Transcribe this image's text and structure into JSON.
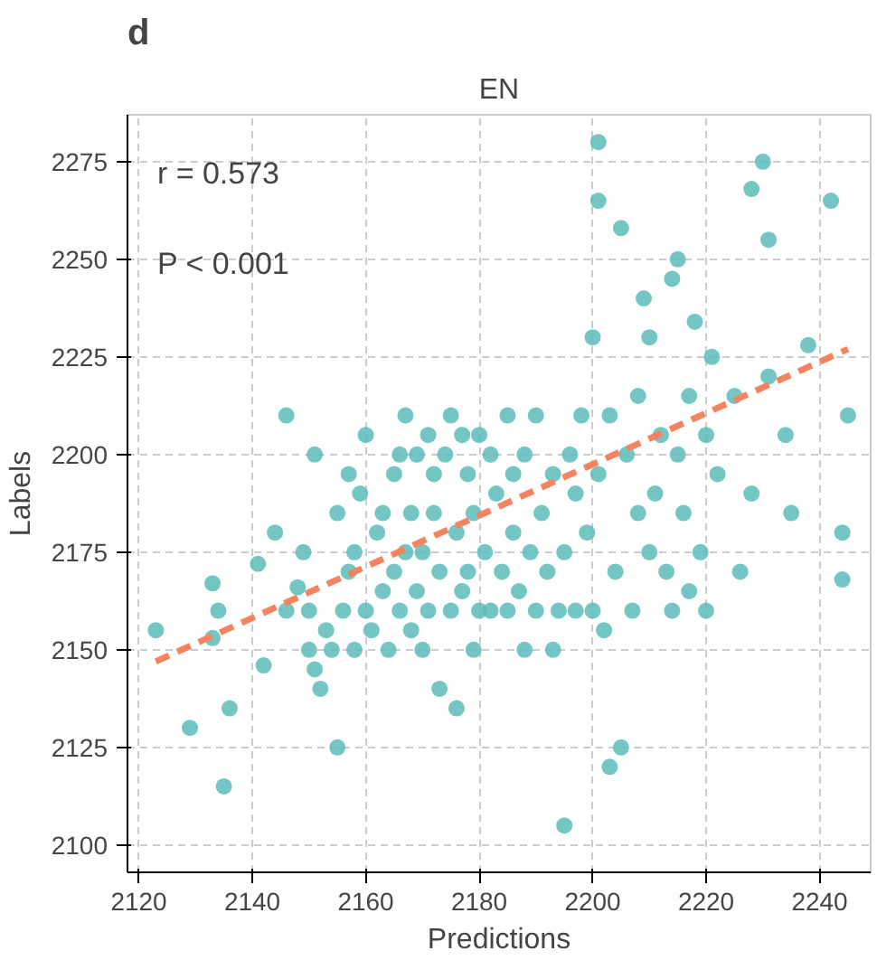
{
  "chart_data": {
    "type": "scatter",
    "title": "EN",
    "xlabel": "Predictions",
    "ylabel": "Labels",
    "xlim": [
      2118,
      2249
    ],
    "ylim": [
      2093,
      2287
    ],
    "xticks": [
      2120,
      2140,
      2160,
      2180,
      2200,
      2220,
      2240
    ],
    "yticks": [
      2100,
      2125,
      2150,
      2175,
      2200,
      2225,
      2250,
      2275
    ],
    "grid": true,
    "annotations": [
      "d",
      "r = 0.573",
      "P < 0.001"
    ],
    "series": [
      {
        "marker": "circle",
        "color": "#5bbcb8",
        "x": [
          2123,
          2129,
          2133,
          2133,
          2134,
          2135,
          2136,
          2141,
          2142,
          2144,
          2146,
          2146,
          2148,
          2149,
          2150,
          2150,
          2151,
          2151,
          2152,
          2153,
          2154,
          2155,
          2155,
          2156,
          2157,
          2157,
          2158,
          2158,
          2159,
          2160,
          2160,
          2161,
          2162,
          2163,
          2163,
          2164,
          2165,
          2165,
          2166,
          2166,
          2167,
          2167,
          2168,
          2168,
          2169,
          2169,
          2170,
          2170,
          2171,
          2171,
          2172,
          2172,
          2173,
          2173,
          2174,
          2175,
          2175,
          2176,
          2176,
          2177,
          2177,
          2178,
          2178,
          2179,
          2179,
          2180,
          2180,
          2181,
          2182,
          2182,
          2183,
          2184,
          2185,
          2185,
          2186,
          2186,
          2187,
          2188,
          2188,
          2189,
          2190,
          2190,
          2191,
          2192,
          2193,
          2193,
          2194,
          2195,
          2195,
          2196,
          2197,
          2197,
          2198,
          2199,
          2200,
          2200,
          2201,
          2201,
          2201,
          2202,
          2203,
          2203,
          2204,
          2205,
          2205,
          2206,
          2207,
          2208,
          2208,
          2209,
          2210,
          2210,
          2211,
          2212,
          2213,
          2214,
          2214,
          2215,
          2215,
          2216,
          2217,
          2217,
          2218,
          2219,
          2220,
          2220,
          2221,
          2222,
          2225,
          2226,
          2228,
          2228,
          2230,
          2231,
          2231,
          2234,
          2235,
          2238,
          2242,
          2244,
          2244,
          2245
        ],
        "values": [
          2155,
          2130,
          2153,
          2167,
          2160,
          2115,
          2135,
          2172,
          2146,
          2180,
          2210,
          2160,
          2166,
          2175,
          2160,
          2150,
          2145,
          2200,
          2140,
          2155,
          2150,
          2125,
          2185,
          2160,
          2170,
          2195,
          2150,
          2175,
          2190,
          2160,
          2205,
          2155,
          2180,
          2185,
          2165,
          2150,
          2170,
          2195,
          2160,
          2200,
          2175,
          2210,
          2155,
          2185,
          2165,
          2200,
          2150,
          2175,
          2160,
          2205,
          2185,
          2195,
          2140,
          2170,
          2200,
          2160,
          2210,
          2135,
          2180,
          2165,
          2205,
          2170,
          2195,
          2150,
          2185,
          2160,
          2205,
          2175,
          2160,
          2200,
          2190,
          2170,
          2160,
          2210,
          2180,
          2195,
          2165,
          2150,
          2200,
          2175,
          2160,
          2210,
          2185,
          2170,
          2150,
          2195,
          2160,
          2105,
          2175,
          2200,
          2190,
          2160,
          2210,
          2180,
          2160,
          2230,
          2280,
          2265,
          2195,
          2155,
          2120,
          2210,
          2170,
          2125,
          2258,
          2200,
          2160,
          2185,
          2215,
          2240,
          2230,
          2175,
          2190,
          2205,
          2170,
          2245,
          2160,
          2250,
          2200,
          2185,
          2215,
          2165,
          2234,
          2175,
          2205,
          2160,
          2225,
          2195,
          2215,
          2170,
          2268,
          2190,
          2275,
          2255,
          2220,
          2205,
          2185,
          2228,
          2265,
          2180,
          2168,
          2210
        ]
      },
      {
        "type": "line",
        "marker": "none",
        "color": "#f4845f",
        "line_style": "dashed",
        "x": [
          2123,
          2245
        ],
        "values": [
          2147,
          2227
        ]
      }
    ]
  }
}
